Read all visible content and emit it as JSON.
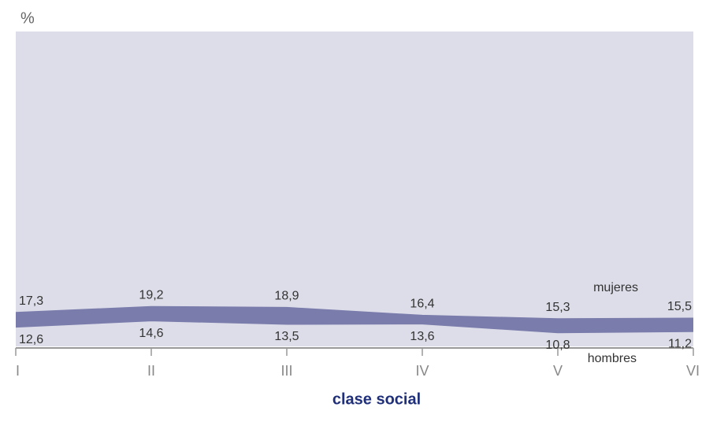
{
  "chart_data": {
    "type": "band",
    "y_label": "%",
    "x_label": "clase social",
    "categories": [
      "I",
      "II",
      "III",
      "IV",
      "V",
      "VI"
    ],
    "color": "#7a7cab",
    "series": [
      {
        "name": "mujeres",
        "values": [
          17.3,
          19.2,
          18.9,
          16.4,
          15.3,
          15.5
        ],
        "value_labels": [
          "17,3",
          "19,2",
          "18,9",
          "16,4",
          "15,3",
          "15,5"
        ]
      },
      {
        "name": "hombres",
        "values": [
          12.6,
          14.6,
          13.5,
          13.6,
          10.8,
          11.2
        ],
        "value_labels": [
          "12,6",
          "14,6",
          "13,5",
          "13,6",
          "10,8",
          "11,2"
        ]
      }
    ]
  }
}
